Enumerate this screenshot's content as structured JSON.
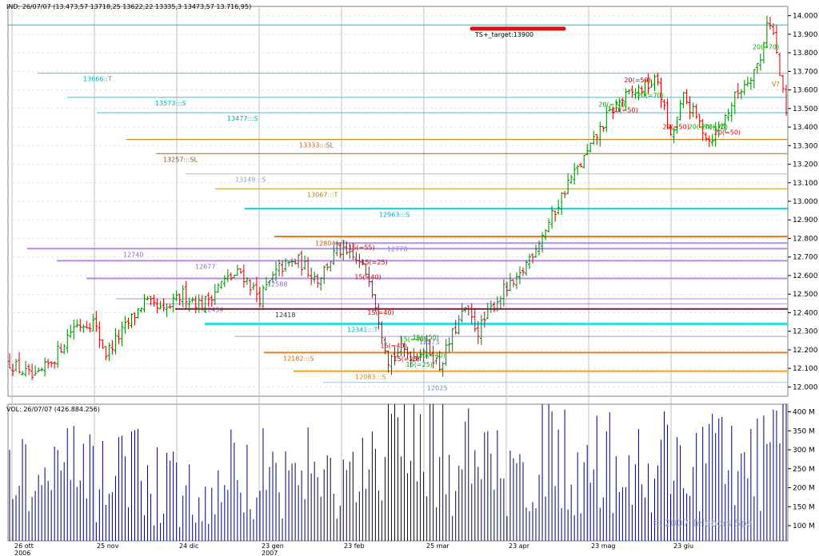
{
  "header": {
    "price_info": "IND: 26/07/07 (13.473,57   13718,25   13622,22   13335,3   13473,57   13.716,95)",
    "volume_info": "VOL: 26/07/07 (426.884.256)"
  },
  "watermark": "© 2007 Telebors Spa",
  "colors": {
    "background": "#ffffff",
    "grid_vertical": "#c0c0c0",
    "grid_horizontal": "#e4e4e4",
    "up_bar": "#008000",
    "down_bar": "#cc0000",
    "volume_bar": "#000060"
  },
  "chart_data": [
    {
      "type": "ohlc",
      "panel": "price",
      "ylim": [
        11950,
        14050
      ],
      "y_ticks": [
        "14.000",
        "13.900",
        "13.800",
        "13.700",
        "13.600",
        "13.500",
        "13.400",
        "13.300",
        "13.200",
        "13.100",
        "13.000",
        "12.900",
        "12.800",
        "12.700",
        "12.600",
        "12.500",
        "12.400",
        "12.300",
        "12.200",
        "12.100",
        "12.000"
      ],
      "x_tick_labels": [
        {
          "line1": "26 ott",
          "line2": "2006"
        },
        {
          "line1": "25 nov",
          "line2": ""
        },
        {
          "line1": "24 dic",
          "line2": ""
        },
        {
          "line1": "23 gen",
          "line2": "2007"
        },
        {
          "line1": "23 feb",
          "line2": ""
        },
        {
          "line1": "25 mar",
          "line2": ""
        },
        {
          "line1": "23 apr",
          "line2": ""
        },
        {
          "line1": "23 mag",
          "line2": ""
        },
        {
          "line1": "23 giu",
          "line2": ""
        }
      ],
      "anchors": [
        [
          0,
          12130
        ],
        [
          8,
          12040
        ],
        [
          14,
          12160
        ],
        [
          20,
          12330
        ],
        [
          26,
          12350
        ],
        [
          30,
          12180
        ],
        [
          36,
          12320
        ],
        [
          42,
          12460
        ],
        [
          48,
          12400
        ],
        [
          54,
          12500
        ],
        [
          60,
          12440
        ],
        [
          66,
          12560
        ],
        [
          72,
          12620
        ],
        [
          78,
          12480
        ],
        [
          84,
          12640
        ],
        [
          90,
          12680
        ],
        [
          96,
          12580
        ],
        [
          102,
          12740
        ],
        [
          108,
          12680
        ],
        [
          112,
          12600
        ],
        [
          118,
          12150
        ],
        [
          122,
          12200
        ],
        [
          126,
          12170
        ],
        [
          130,
          12220
        ],
        [
          134,
          12110
        ],
        [
          138,
          12280
        ],
        [
          142,
          12420
        ],
        [
          146,
          12300
        ],
        [
          150,
          12420
        ],
        [
          154,
          12520
        ],
        [
          158,
          12560
        ],
        [
          162,
          12700
        ],
        [
          166,
          12820
        ],
        [
          170,
          12950
        ],
        [
          174,
          13100
        ],
        [
          178,
          13200
        ],
        [
          182,
          13320
        ],
        [
          186,
          13450
        ],
        [
          190,
          13540
        ],
        [
          194,
          13580
        ],
        [
          198,
          13620
        ],
        [
          202,
          13650
        ],
        [
          206,
          13330
        ],
        [
          210,
          13560
        ],
        [
          214,
          13450
        ],
        [
          218,
          13330
        ],
        [
          222,
          13420
        ],
        [
          226,
          13560
        ],
        [
          230,
          13660
        ],
        [
          234,
          13760
        ],
        [
          236,
          13980
        ],
        [
          238,
          13900
        ],
        [
          240,
          13680
        ],
        [
          242,
          13470
        ]
      ],
      "levels": [
        {
          "value": 13950,
          "color": "#00c8c8",
          "width": 1,
          "label": "",
          "label_color": ""
        },
        {
          "value": 13690,
          "color": "#33c4ee",
          "width": 1,
          "label": "13666::T",
          "label_color": "#00b0b0"
        },
        {
          "value": 13560,
          "color": "#33c4ee",
          "width": 1,
          "label": "13573:::S",
          "label_color": "#00b0b0"
        },
        {
          "value": 13477,
          "color": "#33c4ee",
          "width": 1,
          "label": "13477:::S",
          "label_color": "#00b0b0"
        },
        {
          "value": 13333,
          "color": "#d2700c",
          "width": 1,
          "label": "13333:::SL",
          "label_color": "#b26a1a"
        },
        {
          "value": 13257,
          "color": "#8a6a3a",
          "width": 1,
          "label": "13257:::SL",
          "label_color": "#7a5a2a"
        },
        {
          "value": 13148,
          "color": "#a8c8d8",
          "width": 1,
          "label": "13148:::S",
          "label_color": "#8aa8c0"
        },
        {
          "value": 13067,
          "color": "#b8a030",
          "width": 1,
          "label": "13067:::T",
          "label_color": "#a08820"
        },
        {
          "value": 12960,
          "color": "#00d0e8",
          "width": 2,
          "label": "12963:::S",
          "label_color": "#00b0c8"
        },
        {
          "value": 12810,
          "color": "#e07820",
          "width": 2,
          "label": "",
          "label_color": ""
        },
        {
          "value": 12804,
          "color": "",
          "width": 0,
          "label": "12804:::T",
          "label_color": "#c06010"
        },
        {
          "value": 12775,
          "color": "#b38be6",
          "width": 2,
          "label": "12778",
          "label_color": "#8e6cc8"
        },
        {
          "value": 12745,
          "color": "#b38be6",
          "width": 2,
          "label": "12740",
          "label_color": "#8e6cc8"
        },
        {
          "value": 12680,
          "color": "#b38be6",
          "width": 2,
          "label": "12677",
          "label_color": "#8e6cc8"
        },
        {
          "value": 12585,
          "color": "#b38be6",
          "width": 2,
          "label": "12588",
          "label_color": "#8e6cc8"
        },
        {
          "value": 12475,
          "color": "#b38be6",
          "width": 1,
          "label": "",
          "label_color": ""
        },
        {
          "value": 12448,
          "color": "#b38be6",
          "width": 1,
          "label": "12454",
          "label_color": "#8e6cc8"
        },
        {
          "value": 12420,
          "color": "#7a1f3a",
          "width": 2,
          "label": "12418",
          "label_color": "#333333"
        },
        {
          "value": 12340,
          "color": "#33dbe8",
          "width": 3,
          "label": "12341:::T",
          "label_color": "#00b0b0"
        },
        {
          "value": 12272,
          "color": "#b38be6",
          "width": 1,
          "label": "12273",
          "label_color": "#8e6cc8"
        },
        {
          "value": 12185,
          "color": "#e88020",
          "width": 2,
          "label": "12182:::S",
          "label_color": "#d06810"
        },
        {
          "value": 12085,
          "color": "#f0a020",
          "width": 2,
          "label": "12083:::S",
          "label_color": "#d08010"
        },
        {
          "value": 12025,
          "color": "#a8c8e8",
          "width": 1,
          "label": "12025",
          "label_color": "#6c8cb8"
        }
      ],
      "target": {
        "label": "TS+_target:13900",
        "value": 13900,
        "color": "#e01010"
      },
      "signals": [
        {
          "text": "15(=55)",
          "color": "#cc0000"
        },
        {
          "text": "15(=40)",
          "color": "#cc0000"
        },
        {
          "text": "15(=25)",
          "color": "#cc0000"
        },
        {
          "text": "15(=40)",
          "color": "#cc0000"
        },
        {
          "text": "15(=40)",
          "color": "#cc0000"
        },
        {
          "text": "15(=25)",
          "color": "#cc0000"
        },
        {
          "text": "15(=40)",
          "color": "#00aa00"
        },
        {
          "text": "15(=25)",
          "color": "#00aa00"
        },
        {
          "text": "15(=50)",
          "color": "#00aa00"
        },
        {
          "text": "15(=40)",
          "color": "#00aa00"
        },
        {
          "text": "20(=70)",
          "color": "#00aa00"
        },
        {
          "text": "20(=50)",
          "color": "#cc0000"
        },
        {
          "text": "20(=50)",
          "color": "#cc0000"
        },
        {
          "text": "20(=70)",
          "color": "#00aa00"
        },
        {
          "text": "20(=50)",
          "color": "#cc0000"
        },
        {
          "text": "20(=70)",
          "color": "#00aa00"
        },
        {
          "text": "20(=70)",
          "color": "#00aa00"
        },
        {
          "text": "20(=50)",
          "color": "#cc0000"
        },
        {
          "text": "20(=70)",
          "color": "#00aa00"
        },
        {
          "text": "V?",
          "color": "#cc6600"
        }
      ]
    },
    {
      "type": "bar",
      "panel": "volume",
      "unit": "M",
      "ylim": [
        60,
        420
      ],
      "y_ticks": [
        "400 M",
        "350 M",
        "300 M",
        "250 M",
        "200 M",
        "150 M",
        "100 M"
      ],
      "anchors": [
        [
          0,
          270
        ],
        [
          10,
          230
        ],
        [
          20,
          250
        ],
        [
          30,
          220
        ],
        [
          40,
          245
        ],
        [
          48,
          200
        ],
        [
          56,
          210
        ],
        [
          60,
          120
        ],
        [
          66,
          240
        ],
        [
          74,
          250
        ],
        [
          80,
          245
        ],
        [
          88,
          260
        ],
        [
          96,
          240
        ],
        [
          104,
          225
        ],
        [
          110,
          250
        ],
        [
          116,
          230
        ],
        [
          118,
          380
        ],
        [
          122,
          400
        ],
        [
          126,
          300
        ],
        [
          130,
          320
        ],
        [
          134,
          310
        ],
        [
          138,
          250
        ],
        [
          142,
          330
        ],
        [
          146,
          270
        ],
        [
          150,
          280
        ],
        [
          154,
          260
        ],
        [
          158,
          240
        ],
        [
          162,
          270
        ],
        [
          166,
          290
        ],
        [
          170,
          300
        ],
        [
          176,
          260
        ],
        [
          184,
          300
        ],
        [
          190,
          250
        ],
        [
          196,
          280
        ],
        [
          200,
          240
        ],
        [
          204,
          330
        ],
        [
          208,
          300
        ],
        [
          212,
          270
        ],
        [
          216,
          310
        ],
        [
          220,
          260
        ],
        [
          226,
          280
        ],
        [
          230,
          320
        ],
        [
          234,
          290
        ],
        [
          238,
          350
        ],
        [
          242,
          390
        ]
      ]
    }
  ]
}
